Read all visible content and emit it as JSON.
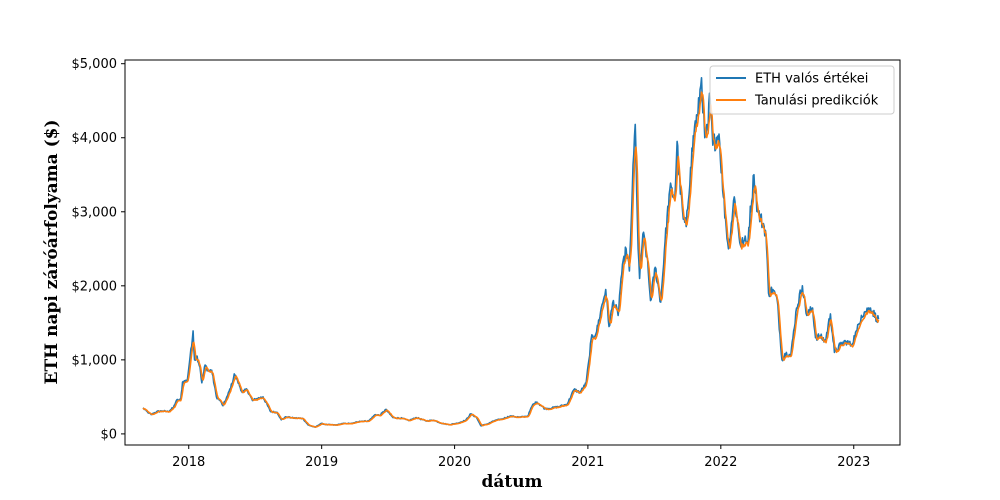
{
  "chart_data": {
    "type": "line",
    "title": "",
    "xlabel": "dátum",
    "ylabel": "ETH napi záróárfolyama ($)",
    "xlim": [
      "2017-07-10",
      "2023-05-08"
    ],
    "ylim": [
      -150,
      5050
    ],
    "x_ticks": [
      {
        "date": "2018-01-01",
        "label": "2018"
      },
      {
        "date": "2019-01-01",
        "label": "2019"
      },
      {
        "date": "2020-01-01",
        "label": "2020"
      },
      {
        "date": "2021-01-01",
        "label": "2021"
      },
      {
        "date": "2022-01-01",
        "label": "2022"
      },
      {
        "date": "2023-01-01",
        "label": "2023"
      }
    ],
    "y_ticks": [
      {
        "value": 0,
        "label": "$0"
      },
      {
        "value": 1000,
        "label": "$1,000"
      },
      {
        "value": 2000,
        "label": "$2,000"
      },
      {
        "value": 3000,
        "label": "$3,000"
      },
      {
        "value": 4000,
        "label": "$4,000"
      },
      {
        "value": 5000,
        "label": "$5,000"
      }
    ],
    "grid": false,
    "legend_position": "top-right",
    "series": [
      {
        "name": "ETH valós értékei",
        "color": "#1f77b4",
        "points": [
          [
            "2017-08-28",
            350
          ],
          [
            "2017-09-10",
            295
          ],
          [
            "2017-09-20",
            260
          ],
          [
            "2017-10-05",
            300
          ],
          [
            "2017-10-20",
            310
          ],
          [
            "2017-11-05",
            300
          ],
          [
            "2017-11-20",
            355
          ],
          [
            "2017-11-28",
            450
          ],
          [
            "2017-12-10",
            460
          ],
          [
            "2017-12-15",
            700
          ],
          [
            "2017-12-28",
            720
          ],
          [
            "2018-01-05",
            1050
          ],
          [
            "2018-01-09",
            1180
          ],
          [
            "2018-01-13",
            1390
          ],
          [
            "2018-01-17",
            1000
          ],
          [
            "2018-01-24",
            1050
          ],
          [
            "2018-02-01",
            900
          ],
          [
            "2018-02-06",
            690
          ],
          [
            "2018-02-15",
            930
          ],
          [
            "2018-02-24",
            850
          ],
          [
            "2018-03-05",
            860
          ],
          [
            "2018-03-18",
            500
          ],
          [
            "2018-03-28",
            450
          ],
          [
            "2018-04-05",
            380
          ],
          [
            "2018-04-18",
            520
          ],
          [
            "2018-04-30",
            680
          ],
          [
            "2018-05-06",
            810
          ],
          [
            "2018-05-15",
            720
          ],
          [
            "2018-05-28",
            560
          ],
          [
            "2018-06-10",
            600
          ],
          [
            "2018-06-25",
            450
          ],
          [
            "2018-07-10",
            480
          ],
          [
            "2018-07-24",
            500
          ],
          [
            "2018-08-14",
            300
          ],
          [
            "2018-09-01",
            290
          ],
          [
            "2018-09-12",
            190
          ],
          [
            "2018-09-25",
            230
          ],
          [
            "2018-10-15",
            215
          ],
          [
            "2018-11-10",
            210
          ],
          [
            "2018-11-25",
            120
          ],
          [
            "2018-12-14",
            90
          ],
          [
            "2018-12-30",
            140
          ],
          [
            "2019-01-15",
            125
          ],
          [
            "2019-02-10",
            120
          ],
          [
            "2019-03-01",
            140
          ],
          [
            "2019-03-25",
            140
          ],
          [
            "2019-04-15",
            170
          ],
          [
            "2019-05-10",
            175
          ],
          [
            "2019-05-28",
            260
          ],
          [
            "2019-06-10",
            250
          ],
          [
            "2019-06-26",
            330
          ],
          [
            "2019-07-16",
            220
          ],
          [
            "2019-08-10",
            210
          ],
          [
            "2019-08-28",
            180
          ],
          [
            "2019-09-18",
            220
          ],
          [
            "2019-10-15",
            175
          ],
          [
            "2019-11-05",
            185
          ],
          [
            "2019-11-25",
            145
          ],
          [
            "2019-12-17",
            125
          ],
          [
            "2020-01-10",
            145
          ],
          [
            "2020-02-01",
            185
          ],
          [
            "2020-02-14",
            270
          ],
          [
            "2020-03-01",
            225
          ],
          [
            "2020-03-13",
            110
          ],
          [
            "2020-04-01",
            135
          ],
          [
            "2020-04-20",
            180
          ],
          [
            "2020-05-10",
            200
          ],
          [
            "2020-06-01",
            240
          ],
          [
            "2020-06-28",
            225
          ],
          [
            "2020-07-20",
            240
          ],
          [
            "2020-08-02",
            390
          ],
          [
            "2020-08-14",
            430
          ],
          [
            "2020-09-05",
            340
          ],
          [
            "2020-09-25",
            350
          ],
          [
            "2020-10-15",
            370
          ],
          [
            "2020-11-05",
            400
          ],
          [
            "2020-11-24",
            600
          ],
          [
            "2020-12-10",
            560
          ],
          [
            "2020-12-27",
            680
          ],
          [
            "2021-01-04",
            1000
          ],
          [
            "2021-01-10",
            1280
          ],
          [
            "2021-01-25",
            1380
          ],
          [
            "2021-02-05",
            1650
          ],
          [
            "2021-02-19",
            1950
          ],
          [
            "2021-02-28",
            1450
          ],
          [
            "2021-03-12",
            1800
          ],
          [
            "2021-03-25",
            1600
          ],
          [
            "2021-04-02",
            2100
          ],
          [
            "2021-04-16",
            2500
          ],
          [
            "2021-04-25",
            2200
          ],
          [
            "2021-05-03",
            3300
          ],
          [
            "2021-05-11",
            4180
          ],
          [
            "2021-05-19",
            2500
          ],
          [
            "2021-05-23",
            2100
          ],
          [
            "2021-06-01",
            2700
          ],
          [
            "2021-06-12",
            2400
          ],
          [
            "2021-06-22",
            1800
          ],
          [
            "2021-07-05",
            2250
          ],
          [
            "2021-07-20",
            1780
          ],
          [
            "2021-08-01",
            2600
          ],
          [
            "2021-08-14",
            3300
          ],
          [
            "2021-08-28",
            3200
          ],
          [
            "2021-09-03",
            3950
          ],
          [
            "2021-09-08",
            3500
          ],
          [
            "2021-09-20",
            2900
          ],
          [
            "2021-09-28",
            2800
          ],
          [
            "2021-10-10",
            3600
          ],
          [
            "2021-10-21",
            4150
          ],
          [
            "2021-10-30",
            4300
          ],
          [
            "2021-11-09",
            4810
          ],
          [
            "2021-11-18",
            4000
          ],
          [
            "2021-11-27",
            4100
          ],
          [
            "2021-12-01",
            4600
          ],
          [
            "2021-12-10",
            3900
          ],
          [
            "2021-12-20",
            4000
          ],
          [
            "2021-12-27",
            4050
          ],
          [
            "2022-01-08",
            3200
          ],
          [
            "2022-01-22",
            2500
          ],
          [
            "2022-02-07",
            3200
          ],
          [
            "2022-02-24",
            2550
          ],
          [
            "2022-03-05",
            2600
          ],
          [
            "2022-03-15",
            2580
          ],
          [
            "2022-04-02",
            3500
          ],
          [
            "2022-04-12",
            3000
          ],
          [
            "2022-04-30",
            2800
          ],
          [
            "2022-05-05",
            2700
          ],
          [
            "2022-05-12",
            1900
          ],
          [
            "2022-05-24",
            1950
          ],
          [
            "2022-06-05",
            1800
          ],
          [
            "2022-06-18",
            1000
          ],
          [
            "2022-06-30",
            1100
          ],
          [
            "2022-07-12",
            1050
          ],
          [
            "2022-07-28",
            1700
          ],
          [
            "2022-08-13",
            2000
          ],
          [
            "2022-08-25",
            1600
          ],
          [
            "2022-09-10",
            1700
          ],
          [
            "2022-09-18",
            1300
          ],
          [
            "2022-09-30",
            1320
          ],
          [
            "2022-10-15",
            1250
          ],
          [
            "2022-10-29",
            1620
          ],
          [
            "2022-11-09",
            1100
          ],
          [
            "2022-11-25",
            1200
          ],
          [
            "2022-12-10",
            1250
          ],
          [
            "2022-12-25",
            1200
          ],
          [
            "2023-01-10",
            1400
          ],
          [
            "2023-01-22",
            1600
          ],
          [
            "2023-02-01",
            1650
          ],
          [
            "2023-02-16",
            1700
          ],
          [
            "2023-03-05",
            1560
          ],
          [
            "2023-03-10",
            1550
          ]
        ]
      },
      {
        "name": "Tanulási predikciók",
        "color": "#ff7f0e",
        "points": []
      }
    ]
  }
}
